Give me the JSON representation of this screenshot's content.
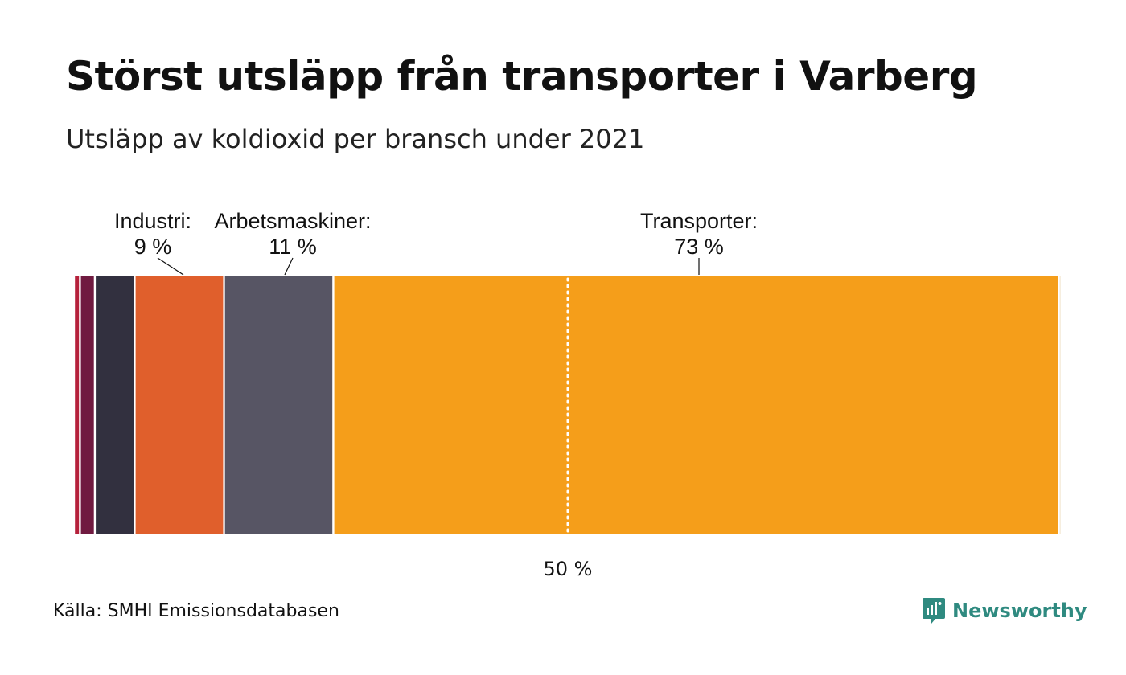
{
  "title": "Störst utsläpp från transporter i Varberg",
  "subtitle": "Utsläpp av koldioxid per bransch under 2021",
  "source": "Källa: SMHI Emissionsdatabasen",
  "brand": {
    "name": "Newsworthy",
    "color": "#2f8a80",
    "icon": "newsworthy-logo-icon"
  },
  "chart_data": {
    "type": "bar",
    "orientation": "horizontal-stacked",
    "unit": "%",
    "xlim": [
      0,
      100
    ],
    "reference_line": {
      "value": 50,
      "label": "50 %",
      "style": "dotted"
    },
    "series": [
      {
        "value": 0.6,
        "color": "#b5213b"
      },
      {
        "value": 1.5,
        "color": "#701a40"
      },
      {
        "value": 4.0,
        "color": "#32303f"
      },
      {
        "label": "Industri:",
        "value_label": "9 %",
        "value": 9,
        "color": "#e05f2c"
      },
      {
        "label": "Arbetsmaskiner:",
        "value_label": "11 %",
        "value": 11,
        "color": "#575564"
      },
      {
        "label": "Transporter:",
        "value_label": "73 %",
        "value": 73,
        "color": "#f59e1a"
      },
      {
        "value": 0.3,
        "color": "#f3ead7"
      }
    ]
  }
}
